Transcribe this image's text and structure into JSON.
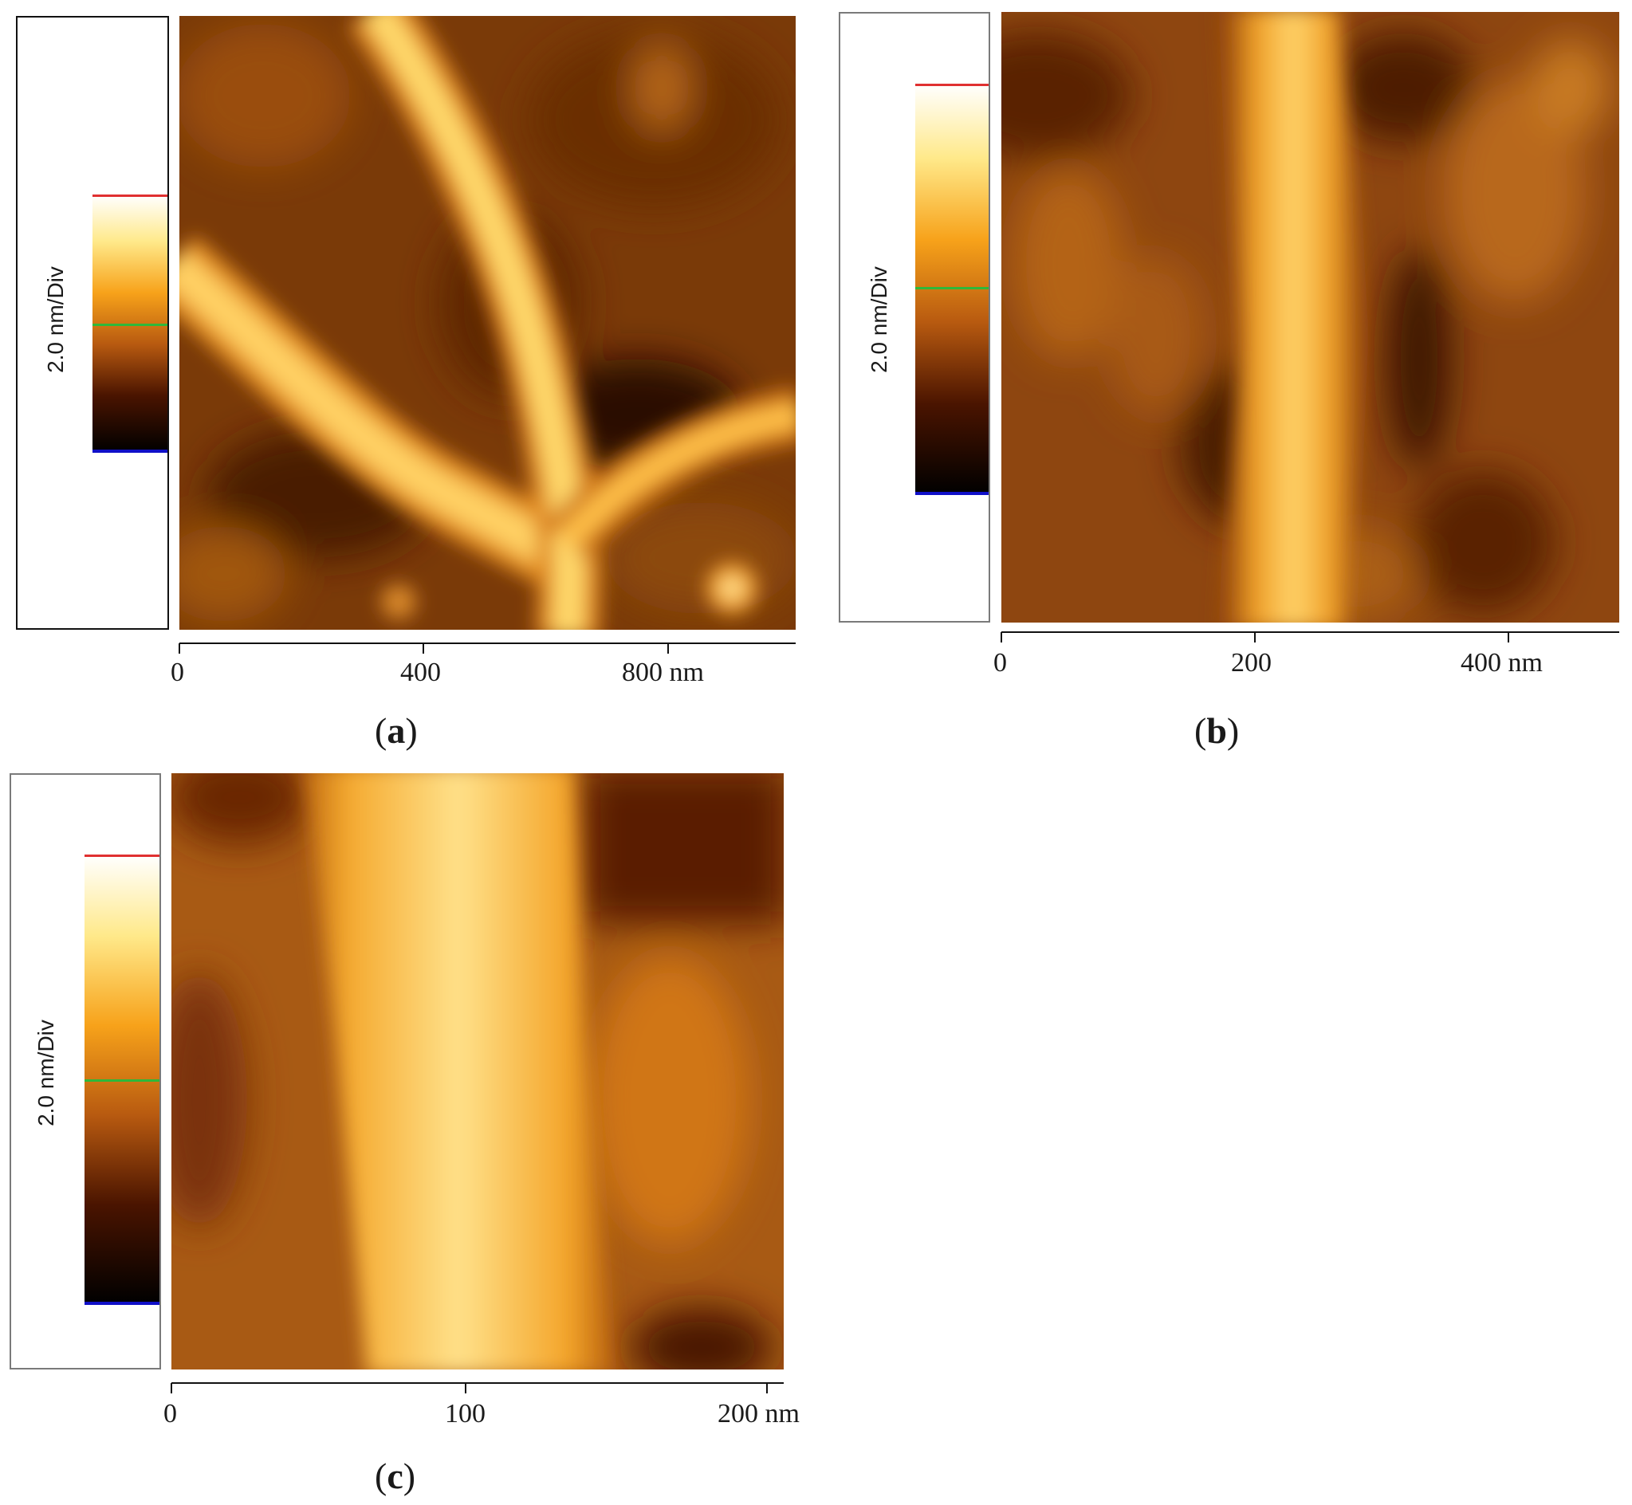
{
  "colors": {
    "colorbar_top_marker": "#e03030",
    "colorbar_mid_marker": "#2fb83a",
    "colorbar_bottom_marker": "#1010c8",
    "afm_dark": "#3a1000",
    "afm_mid": "#b85c0a",
    "afm_bright": "#fff2b8"
  },
  "panels": [
    {
      "id": "a",
      "label_open": "(",
      "label_letter": "a",
      "label_close": ")",
      "scale_label": "2.0 nm/Div",
      "x_ticks": [
        "0",
        "400",
        "800 nm"
      ]
    },
    {
      "id": "b",
      "label_open": "(",
      "label_letter": "b",
      "label_close": ")",
      "scale_label": "2.0 nm/Div",
      "x_ticks": [
        "0",
        "200",
        "400 nm"
      ]
    },
    {
      "id": "c",
      "label_open": "(",
      "label_letter": "c",
      "label_close": ")",
      "scale_label": "2.0 nm/Div",
      "x_ticks": [
        "0",
        "100",
        "200 nm"
      ]
    }
  ]
}
